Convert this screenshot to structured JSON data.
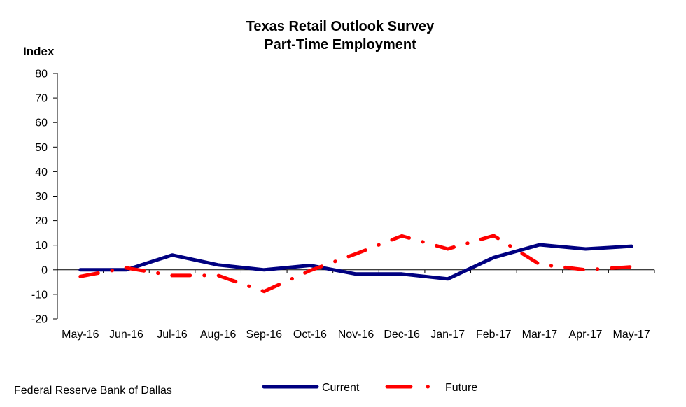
{
  "chart_data": {
    "type": "line",
    "title": "Texas Retail Outlook Survey",
    "subtitle": "Part-Time Employment",
    "ylabel": "Index",
    "xlabel": "",
    "ylim": [
      -20,
      80
    ],
    "yticks": [
      -20,
      -10,
      0,
      10,
      20,
      30,
      40,
      50,
      60,
      70,
      80
    ],
    "categories": [
      "May-16",
      "Jun-16",
      "Jul-16",
      "Aug-16",
      "Sep-16",
      "Oct-16",
      "Nov-16",
      "Dec-16",
      "Jan-17",
      "Feb-17",
      "Mar-17",
      "Apr-17",
      "May-17"
    ],
    "series": [
      {
        "name": "Current",
        "color": "#000080",
        "style": "solid",
        "values": [
          0,
          0,
          6,
          2,
          0,
          1.8,
          -1.7,
          -1.7,
          -3.7,
          5,
          10.2,
          8.5,
          9.6
        ]
      },
      {
        "name": "Future",
        "color": "#ff0000",
        "style": "dash-dot",
        "values": [
          -2.7,
          0.8,
          -2.3,
          -2.3,
          -8.8,
          -0.3,
          6.5,
          13.8,
          8.5,
          13.9,
          2.2,
          0,
          1.2
        ]
      }
    ],
    "grid": false,
    "legend": "bottom"
  },
  "footer": {
    "source": "Federal Reserve Bank of Dallas"
  }
}
